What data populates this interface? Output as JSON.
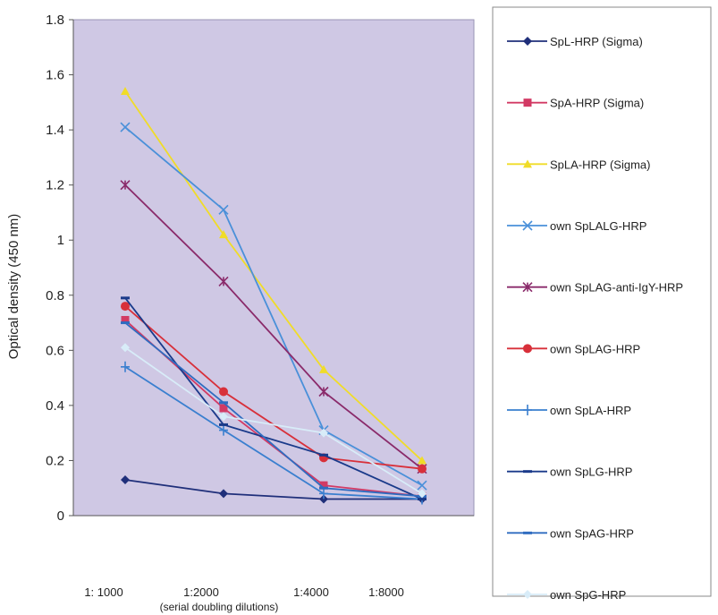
{
  "chart_data": {
    "type": "line",
    "title": "",
    "ylabel": "Optical density (450 nm)",
    "xlabel": "(serial doubling dilutions)",
    "categories": [
      "1: 1000",
      "1:2000",
      "1:4000",
      "1:8000"
    ],
    "ylim": [
      0,
      1.8
    ],
    "yticks": [
      "0",
      "0.2",
      "0.4",
      "0.6",
      "0.8",
      "1",
      "1.2",
      "1.4",
      "1.6",
      "1.8"
    ],
    "grid": false,
    "legend_position": "right",
    "plot_background": "#cfc8e4",
    "series": [
      {
        "name": "SpL-HRP (Sigma)",
        "color": "#1f2f7a",
        "marker": "diamond",
        "values": [
          0.13,
          0.08,
          0.06,
          0.06
        ]
      },
      {
        "name": "SpA-HRP (Sigma)",
        "color": "#d23a64",
        "marker": "square",
        "values": [
          0.71,
          0.39,
          0.11,
          0.07
        ]
      },
      {
        "name": "SpLA-HRP (Sigma)",
        "color": "#f0dc28",
        "marker": "triangle",
        "values": [
          1.54,
          1.02,
          0.53,
          0.2
        ]
      },
      {
        "name": "own SpLALG-HRP",
        "color": "#4a90d9",
        "marker": "x",
        "values": [
          1.41,
          1.11,
          0.31,
          0.11
        ]
      },
      {
        "name": "own SpLAG-anti-IgY-HRP",
        "color": "#8a2a6a",
        "marker": "star",
        "values": [
          1.2,
          0.85,
          0.45,
          0.17
        ]
      },
      {
        "name": "own SpLAG-HRP",
        "color": "#d8303a",
        "marker": "circle",
        "values": [
          0.76,
          0.45,
          0.21,
          0.17
        ]
      },
      {
        "name": "own SpLA-HRP",
        "color": "#3a7fcf",
        "marker": "plus",
        "values": [
          0.54,
          0.31,
          0.08,
          0.06
        ]
      },
      {
        "name": "own SpLG-HRP",
        "color": "#1a3a8a",
        "marker": "dash",
        "values": [
          0.79,
          0.33,
          0.22,
          0.06
        ]
      },
      {
        "name": "own SpAG-HRP",
        "color": "#2f6cc0",
        "marker": "dash",
        "values": [
          0.7,
          0.41,
          0.1,
          0.07
        ]
      },
      {
        "name": "own SpG-HRP",
        "color": "#d8ecf8",
        "marker": "diamond",
        "values": [
          0.61,
          0.36,
          0.3,
          0.08
        ]
      }
    ]
  }
}
